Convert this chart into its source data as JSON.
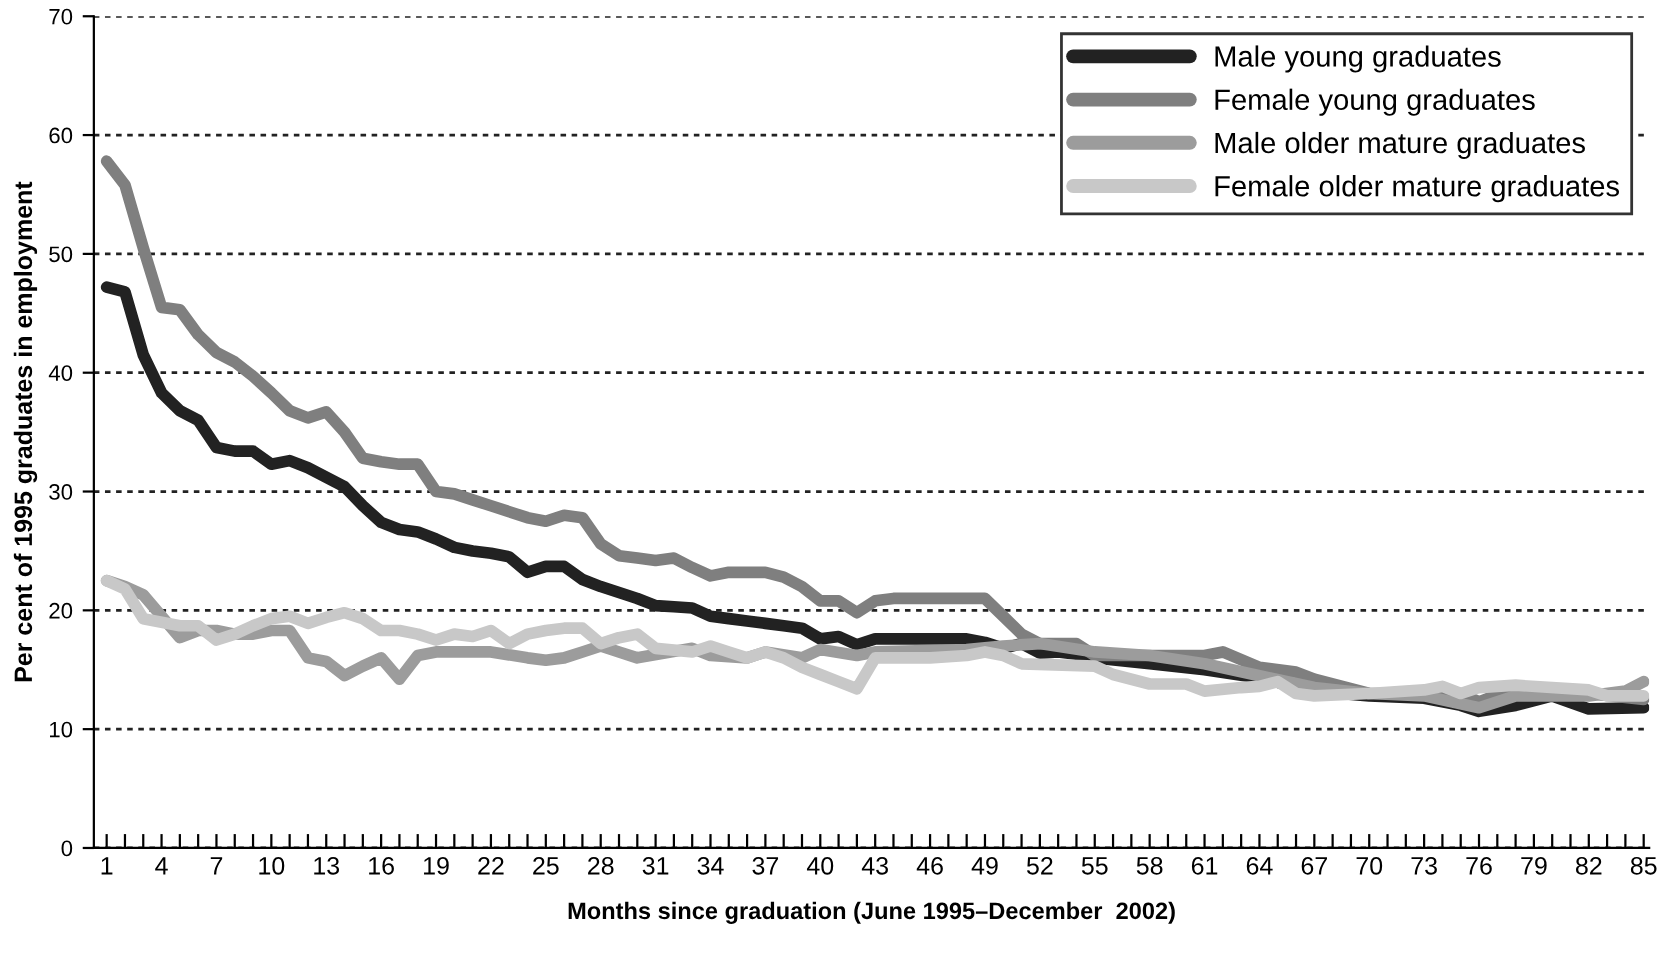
{
  "chart_data": {
    "type": "line",
    "xlabel": "Months since graduation (June 1995–December  2002)",
    "ylabel": "Per cent of 1995 graduates in employment",
    "xlim": [
      0.3,
      85.3
    ],
    "ylim": [
      0,
      70
    ],
    "yticks": [
      0,
      10,
      20,
      30,
      40,
      50,
      60,
      70
    ],
    "xticks": [
      1,
      {
        "value": 2,
        "label": null
      },
      {
        "value": 3,
        "label": null
      },
      4,
      {
        "value": 5,
        "label": null
      },
      {
        "value": 6,
        "label": null
      },
      7,
      {
        "value": 8,
        "label": null
      },
      {
        "value": 9,
        "label": null
      },
      10,
      {
        "value": 11,
        "label": null
      },
      {
        "value": 12,
        "label": null
      },
      13,
      {
        "value": 14,
        "label": null
      },
      {
        "value": 15,
        "label": null
      },
      16,
      {
        "value": 17,
        "label": null
      },
      {
        "value": 18,
        "label": null
      },
      19,
      {
        "value": 20,
        "label": null
      },
      {
        "value": 21,
        "label": null
      },
      22,
      {
        "value": 23,
        "label": null
      },
      {
        "value": 24,
        "label": null
      },
      25,
      {
        "value": 26,
        "label": null
      },
      {
        "value": 27,
        "label": null
      },
      28,
      {
        "value": 29,
        "label": null
      },
      {
        "value": 30,
        "label": null
      },
      31,
      {
        "value": 32,
        "label": null
      },
      {
        "value": 33,
        "label": null
      },
      34,
      {
        "value": 35,
        "label": null
      },
      {
        "value": 36,
        "label": null
      },
      37,
      {
        "value": 38,
        "label": null
      },
      {
        "value": 39,
        "label": null
      },
      40,
      {
        "value": 41,
        "label": null
      },
      {
        "value": 42,
        "label": null
      },
      43,
      {
        "value": 44,
        "label": null
      },
      {
        "value": 45,
        "label": null
      },
      46,
      {
        "value": 47,
        "label": null
      },
      {
        "value": 48,
        "label": null
      },
      49,
      {
        "value": 50,
        "label": null
      },
      {
        "value": 51,
        "label": null
      },
      52,
      {
        "value": 53,
        "label": null
      },
      {
        "value": 54,
        "label": null
      },
      55,
      {
        "value": 56,
        "label": null
      },
      {
        "value": 57,
        "label": null
      },
      58,
      {
        "value": 59,
        "label": null
      },
      {
        "value": 60,
        "label": null
      },
      61,
      {
        "value": 62,
        "label": null
      },
      {
        "value": 63,
        "label": null
      },
      64,
      {
        "value": 65,
        "label": null
      },
      {
        "value": 66,
        "label": null
      },
      67,
      {
        "value": 68,
        "label": null
      },
      {
        "value": 69,
        "label": null
      },
      70,
      {
        "value": 71,
        "label": null
      },
      {
        "value": 72,
        "label": null
      },
      73,
      {
        "value": 74,
        "label": null
      },
      {
        "value": 75,
        "label": null
      },
      76,
      {
        "value": 77,
        "label": null
      },
      {
        "value": 78,
        "label": null
      },
      79,
      {
        "value": 80,
        "label": null
      },
      {
        "value": 81,
        "label": null
      },
      82,
      {
        "value": 83,
        "label": null
      },
      {
        "value": 84,
        "label": null
      },
      85
    ],
    "grid": "y",
    "legend": "top right",
    "line_style": "solid",
    "marker": "none",
    "series": [
      {
        "name": "Male young graduates",
        "color": "#222222",
        "x": [
          1,
          2,
          3,
          4,
          5,
          6,
          7,
          8,
          9,
          10,
          11,
          12,
          13,
          14,
          15,
          16,
          17,
          18,
          19,
          20,
          21,
          22,
          23,
          24,
          25,
          26,
          27,
          28,
          29,
          30,
          31,
          32,
          33,
          34,
          35,
          36,
          37,
          38,
          39,
          40,
          41,
          42,
          43,
          46,
          48,
          49,
          50,
          51,
          52,
          53,
          54,
          55,
          58,
          61,
          64,
          67,
          70,
          73,
          75,
          76,
          78,
          80,
          82,
          85
        ],
        "values": [
          47.2,
          46.8,
          41.5,
          38.3,
          36.8,
          36,
          33.7,
          33.4,
          33.4,
          32.3,
          32.6,
          32,
          31.2,
          30.4,
          28.8,
          27.4,
          26.8,
          26.6,
          26,
          25.3,
          25,
          24.8,
          24.5,
          23.2,
          23.7,
          23.7,
          22.6,
          22,
          21.5,
          21,
          20.4,
          20.3,
          20.2,
          19.5,
          19.3,
          19.1,
          18.9,
          18.7,
          18.5,
          17.6,
          17.8,
          17.1,
          17.6,
          17.6,
          17.6,
          17.3,
          16.8,
          17.2,
          16.4,
          16.5,
          16.3,
          16,
          15.5,
          15,
          14.3,
          13.2,
          12.8,
          12.6,
          12,
          11.5,
          12,
          12.8,
          11.7,
          11.8
        ]
      },
      {
        "name": "Female young graduates",
        "color": "#7f7f7f",
        "x": [
          1,
          2,
          3,
          4,
          5,
          6,
          7,
          8,
          9,
          10,
          11,
          12,
          13,
          14,
          15,
          16,
          17,
          18,
          19,
          20,
          21,
          22,
          23,
          24,
          25,
          26,
          27,
          28,
          29,
          30,
          31,
          32,
          33,
          34,
          35,
          37,
          38,
          39,
          40,
          41,
          42,
          43,
          44,
          49,
          50,
          51,
          52,
          54,
          55,
          58,
          61,
          62,
          64,
          66,
          67,
          70,
          73,
          75,
          76,
          78,
          82,
          85
        ],
        "values": [
          57.8,
          55.8,
          50.5,
          45.5,
          45.3,
          43.2,
          41.7,
          40.9,
          39.7,
          38.3,
          36.8,
          36.2,
          36.7,
          35,
          32.8,
          32.5,
          32.3,
          32.3,
          30,
          29.8,
          29.3,
          28.8,
          28.3,
          27.8,
          27.5,
          28,
          27.8,
          25.6,
          24.6,
          24.4,
          24.2,
          24.4,
          23.6,
          22.9,
          23.2,
          23.2,
          22.8,
          22,
          20.8,
          20.8,
          19.8,
          20.8,
          21,
          21,
          19.5,
          18,
          17.2,
          17.2,
          16.2,
          16.2,
          16.2,
          16.5,
          15.2,
          14.8,
          14.2,
          13,
          13,
          13,
          12.3,
          13.5,
          13,
          12.5
        ]
      },
      {
        "name": "Male older mature graduates",
        "color": "#9c9c9c",
        "x": [
          1,
          2,
          3,
          4,
          5,
          6,
          7,
          8,
          9,
          10,
          11,
          12,
          13,
          14,
          15,
          16,
          17,
          18,
          19,
          22,
          24,
          25,
          26,
          27,
          28,
          29,
          30,
          33,
          34,
          36,
          37,
          39,
          40,
          42,
          43,
          48,
          50,
          52,
          55,
          58,
          61,
          64,
          67,
          70,
          73,
          76,
          78,
          82,
          84,
          85
        ],
        "values": [
          22.5,
          22,
          21.3,
          19.5,
          17.7,
          18.3,
          18.3,
          18,
          18,
          18.3,
          18.3,
          16,
          15.7,
          14.5,
          15.3,
          16,
          14.2,
          16.2,
          16.5,
          16.5,
          16,
          15.8,
          16,
          16.5,
          17,
          16.5,
          16,
          16.8,
          16.2,
          16,
          16.5,
          16,
          16.7,
          16.2,
          16.5,
          16.7,
          17,
          17.2,
          16.5,
          16.2,
          15.5,
          14.5,
          13.5,
          13,
          12.8,
          11.8,
          12.8,
          12.8,
          13.2,
          14
        ]
      },
      {
        "name": "Female older mature graduates",
        "color": "#c8c8c8",
        "x": [
          1,
          2,
          3,
          4,
          5,
          6,
          7,
          8,
          9,
          10,
          11,
          12,
          13,
          14,
          15,
          16,
          17,
          18,
          19,
          20,
          21,
          22,
          23,
          24,
          25,
          26,
          27,
          28,
          29,
          30,
          31,
          33,
          34,
          35,
          36,
          37,
          38,
          39,
          40,
          41,
          42,
          43,
          46,
          48,
          49,
          50,
          51,
          55,
          56,
          58,
          60,
          61,
          63,
          64,
          65,
          66,
          67,
          70,
          73,
          74,
          75,
          76,
          78,
          82,
          83,
          85
        ],
        "values": [
          22.5,
          21.8,
          19.3,
          19,
          18.7,
          18.7,
          17.5,
          18,
          18.7,
          19.3,
          19.5,
          18.9,
          19.4,
          19.8,
          19.3,
          18.3,
          18.3,
          18,
          17.5,
          18,
          17.8,
          18.3,
          17.2,
          18,
          18.3,
          18.5,
          18.5,
          17.2,
          17.7,
          18,
          16.8,
          16.5,
          17,
          16.5,
          16,
          16.5,
          16,
          15.2,
          14.6,
          14,
          13.4,
          16,
          16,
          16.2,
          16.5,
          16.2,
          15.5,
          15.3,
          14.6,
          13.8,
          13.8,
          13.2,
          13.5,
          13.6,
          14,
          13,
          12.8,
          13,
          13.3,
          13.6,
          13,
          13.5,
          13.7,
          13.3,
          12.8,
          12.8
        ]
      }
    ]
  }
}
